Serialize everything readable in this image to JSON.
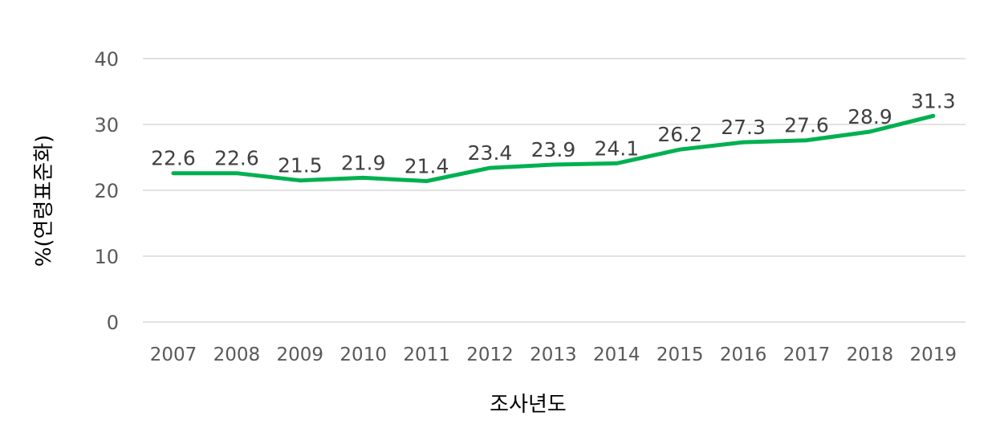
{
  "chart_data": {
    "type": "line",
    "xlabel": "조사년도",
    "ylabel": "%(연령표준화)",
    "ylim": [
      0,
      40
    ],
    "yticks": [
      0,
      10,
      20,
      30,
      40
    ],
    "grid": true,
    "line_color": "#00b050",
    "categories": [
      "2007",
      "2008",
      "2009",
      "2010",
      "2011",
      "2012",
      "2013",
      "2014",
      "2015",
      "2016",
      "2017",
      "2018",
      "2019"
    ],
    "values": [
      22.6,
      22.6,
      21.5,
      21.9,
      21.4,
      23.4,
      23.9,
      24.1,
      26.2,
      27.3,
      27.6,
      28.9,
      31.3
    ],
    "labels": [
      "22.6",
      "22.6",
      "21.5",
      "21.9",
      "21.4",
      "23.4",
      "23.9",
      "24.1",
      "26.2",
      "27.3",
      "27.6",
      "28.9",
      "31.3"
    ]
  }
}
